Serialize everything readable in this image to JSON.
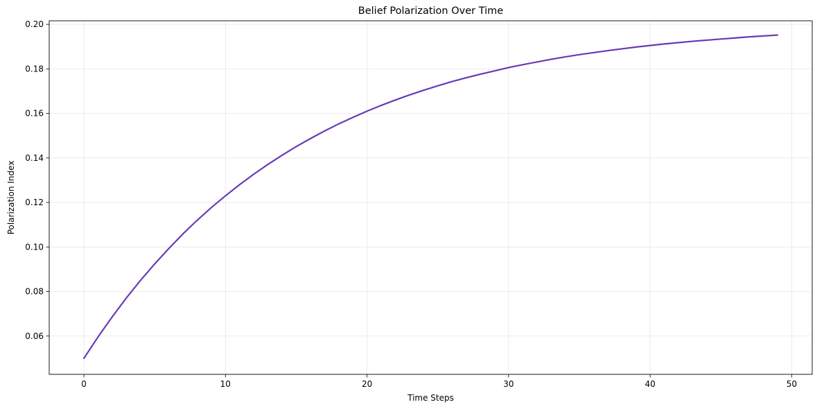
{
  "chart_data": {
    "type": "line",
    "title": "Belief Polarization Over Time",
    "xlabel": "Time Steps",
    "ylabel": "Polarization Index",
    "xlim": [
      -2.45,
      51.45
    ],
    "ylim": [
      0.0428,
      0.2016
    ],
    "xticks": [
      0,
      10,
      20,
      30,
      40,
      50
    ],
    "yticks": [
      0.06,
      0.08,
      0.1,
      0.12,
      0.14,
      0.16,
      0.18,
      0.2
    ],
    "xtick_labels": [
      "0",
      "10",
      "20",
      "30",
      "40",
      "50"
    ],
    "ytick_labels": [
      "0.06",
      "0.08",
      "0.10",
      "0.12",
      "0.14",
      "0.16",
      "0.18",
      "0.20"
    ],
    "grid": true,
    "series": [
      {
        "color": "#673AB7",
        "x": [
          0,
          1,
          2,
          3,
          4,
          5,
          6,
          7,
          8,
          9,
          10,
          11,
          12,
          13,
          14,
          15,
          16,
          17,
          18,
          19,
          20,
          21,
          22,
          23,
          24,
          25,
          26,
          27,
          28,
          29,
          30,
          31,
          32,
          33,
          34,
          35,
          36,
          37,
          38,
          39,
          40,
          41,
          42,
          43,
          44,
          45,
          46,
          47,
          48,
          49
        ],
        "y": [
          0.05,
          0.0596,
          0.0686,
          0.0771,
          0.085,
          0.0924,
          0.0993,
          0.1059,
          0.112,
          0.1177,
          0.123,
          0.128,
          0.1327,
          0.1371,
          0.1412,
          0.1451,
          0.1487,
          0.1521,
          0.1553,
          0.1582,
          0.161,
          0.1636,
          0.166,
          0.1683,
          0.1704,
          0.1724,
          0.1743,
          0.176,
          0.1776,
          0.1791,
          0.1806,
          0.1819,
          0.1831,
          0.1843,
          0.1854,
          0.1864,
          0.1873,
          0.1882,
          0.189,
          0.1898,
          0.1905,
          0.1912,
          0.1918,
          0.1924,
          0.1929,
          0.1934,
          0.1939,
          0.1944,
          0.1948,
          0.1952
        ]
      }
    ]
  }
}
